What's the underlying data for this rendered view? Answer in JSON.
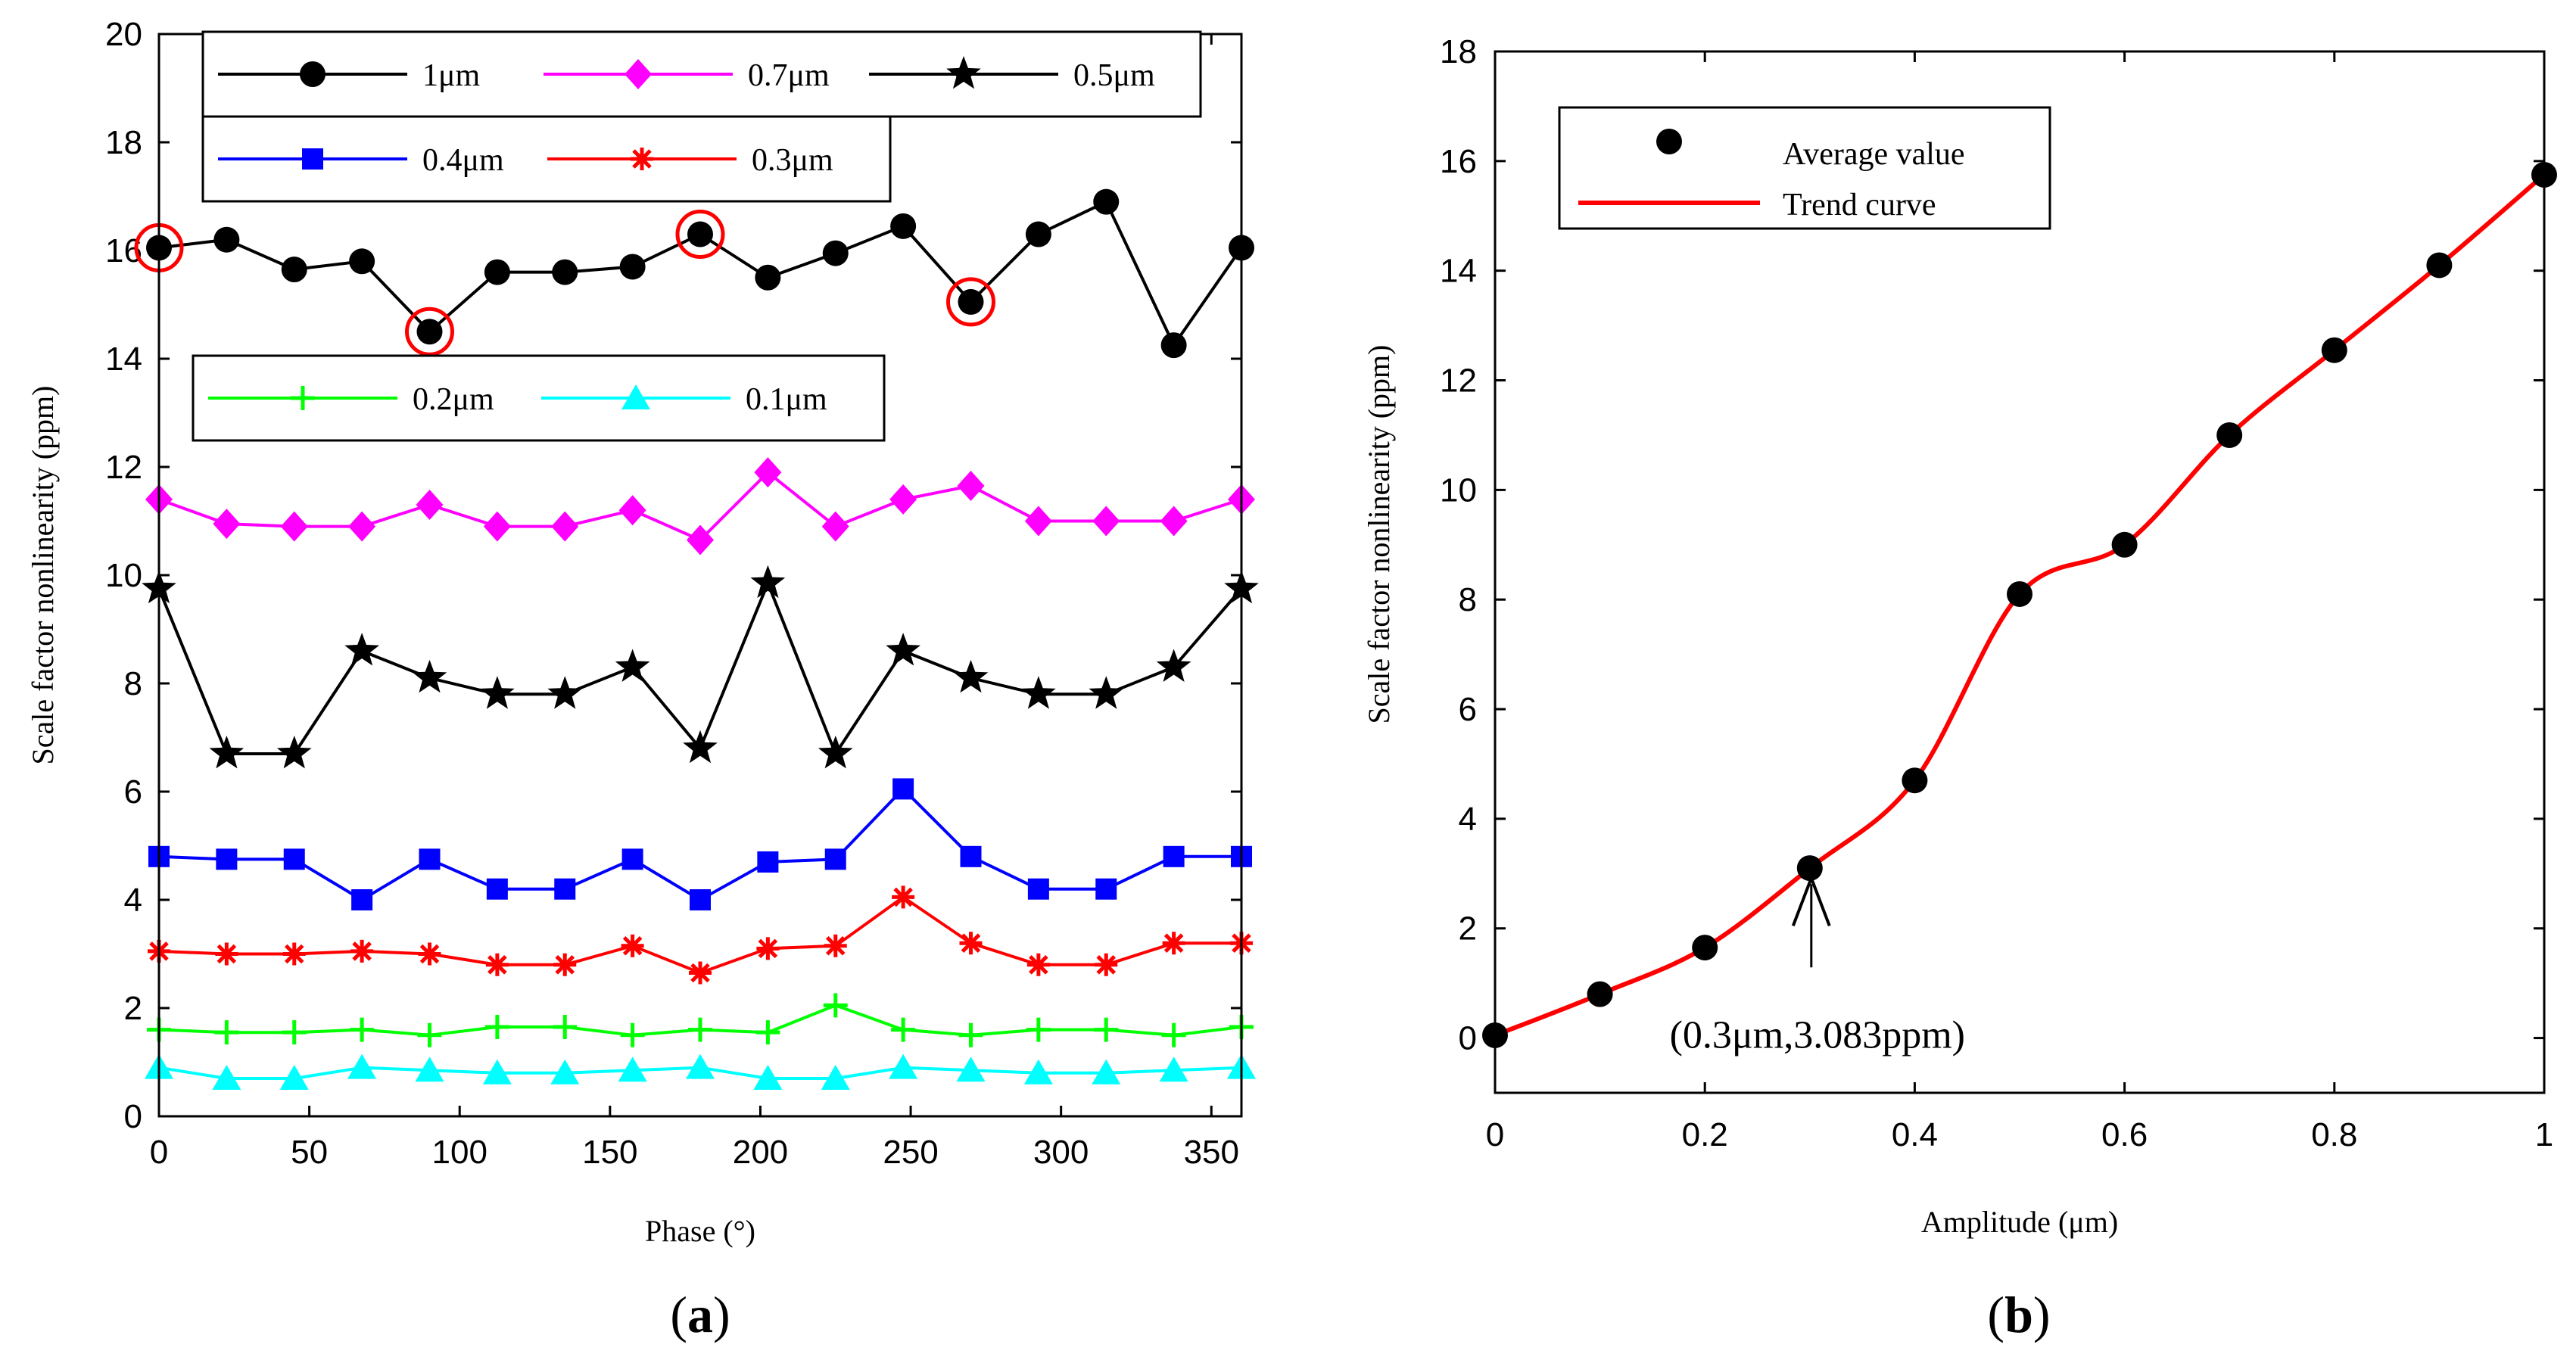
{
  "chart_data": [
    {
      "id": "a",
      "type": "line",
      "caption_open": "(",
      "caption_letter": "a",
      "caption_close": ")",
      "xlabel": "Phase (°)",
      "ylabel": "Scale factor nonlinearity (ppm)",
      "xlim": [
        0,
        360
      ],
      "ylim": [
        0,
        20
      ],
      "xticks": [
        0,
        50,
        100,
        150,
        200,
        250,
        300,
        350
      ],
      "yticks": [
        0,
        2,
        4,
        6,
        8,
        10,
        12,
        14,
        16,
        18,
        20
      ],
      "x": [
        0,
        22.5,
        45,
        67.5,
        90,
        112.5,
        135,
        157.5,
        180,
        202.5,
        225,
        247.5,
        270,
        292.5,
        315,
        337.5,
        360
      ],
      "series": [
        {
          "name": "1μm",
          "color": "#000000",
          "marker": "circle",
          "values": [
            16.05,
            16.2,
            15.65,
            15.8,
            14.5,
            15.6,
            15.6,
            15.7,
            16.3,
            15.5,
            15.95,
            16.45,
            15.05,
            16.3,
            16.9,
            14.25,
            16.05
          ]
        },
        {
          "name": "0.7μm",
          "color": "#ff00ff",
          "marker": "diamond",
          "values": [
            11.4,
            10.95,
            10.9,
            10.9,
            11.3,
            10.9,
            10.9,
            11.2,
            10.65,
            11.9,
            10.9,
            11.4,
            11.65,
            11.0,
            11.0,
            11.0,
            11.4
          ]
        },
        {
          "name": "0.5μm",
          "color": "#000000",
          "marker": "star",
          "values": [
            9.75,
            6.7,
            6.7,
            8.6,
            8.1,
            7.8,
            7.8,
            8.3,
            6.8,
            9.85,
            6.7,
            8.6,
            8.1,
            7.8,
            7.8,
            8.3,
            9.75
          ]
        },
        {
          "name": "0.4μm",
          "color": "#0000ff",
          "marker": "square",
          "values": [
            4.8,
            4.75,
            4.75,
            4.0,
            4.75,
            4.2,
            4.2,
            4.75,
            4.0,
            4.7,
            4.75,
            6.05,
            4.8,
            4.2,
            4.2,
            4.8,
            4.8
          ]
        },
        {
          "name": "0.3μm",
          "color": "#ff0000",
          "marker": "asterisk",
          "values": [
            3.05,
            3.0,
            3.0,
            3.05,
            3.0,
            2.8,
            2.8,
            3.15,
            2.65,
            3.1,
            3.15,
            4.05,
            3.2,
            2.8,
            2.8,
            3.2,
            3.2
          ]
        },
        {
          "name": "0.2μm",
          "color": "#00ff00",
          "marker": "plus",
          "values": [
            1.6,
            1.55,
            1.55,
            1.6,
            1.5,
            1.65,
            1.65,
            1.5,
            1.6,
            1.55,
            2.05,
            1.6,
            1.5,
            1.6,
            1.6,
            1.5,
            1.65
          ]
        },
        {
          "name": "0.1μm",
          "color": "#00ffff",
          "marker": "triangle",
          "values": [
            0.9,
            0.7,
            0.7,
            0.9,
            0.85,
            0.8,
            0.8,
            0.85,
            0.9,
            0.7,
            0.7,
            0.9,
            0.85,
            0.8,
            0.8,
            0.85,
            0.9
          ]
        }
      ],
      "highlighted_points": [
        {
          "series": "1μm",
          "x": 0,
          "y": 16.05
        },
        {
          "series": "1μm",
          "x": 90,
          "y": 14.5
        },
        {
          "series": "1μm",
          "x": 180,
          "y": 16.3
        },
        {
          "series": "1μm",
          "x": 270,
          "y": 15.05
        }
      ],
      "highlight_color": "#ff0000",
      "legend_boxes": [
        {
          "entries": [
            "1μm",
            "0.7μm",
            "0.5μm"
          ],
          "placement": "top"
        },
        {
          "entries": [
            "0.4μm",
            "0.3μm"
          ],
          "placement": "top-left"
        },
        {
          "entries": [
            "0.2μm",
            "0.1μm"
          ],
          "placement": "left"
        }
      ]
    },
    {
      "id": "b",
      "type": "line",
      "caption_open": "(",
      "caption_letter": "b",
      "caption_close": ")",
      "xlabel": "Amplitude (μm)",
      "ylabel": "Scale factor nonlinearity (ppm)",
      "xlim": [
        0,
        1
      ],
      "ylim": [
        -1,
        18
      ],
      "xticks": [
        0,
        0.2,
        0.4,
        0.6,
        0.8,
        1
      ],
      "xtick_labels": [
        "0",
        "0.2",
        "0.4",
        "0.6",
        "0.8",
        "1"
      ],
      "yticks": [
        0,
        2,
        4,
        6,
        8,
        10,
        12,
        14,
        16,
        18
      ],
      "series": [
        {
          "name": "Average value",
          "color": "#000000",
          "marker": "circle",
          "line": false,
          "x": [
            0,
            0.1,
            0.2,
            0.3,
            0.4,
            0.5,
            0.6,
            0.7,
            0.8,
            0.9,
            1.0
          ],
          "values": [
            0.05,
            0.8,
            1.65,
            3.1,
            4.7,
            8.1,
            9.0,
            11.0,
            12.55,
            14.1,
            15.75
          ]
        },
        {
          "name": "Trend curve",
          "color": "#ff0000",
          "marker": "none",
          "line": true,
          "x": [
            0,
            0.1,
            0.2,
            0.3,
            0.4,
            0.5,
            0.6,
            0.7,
            0.8,
            0.9,
            1.0
          ],
          "values": [
            0.05,
            0.8,
            1.65,
            3.1,
            4.7,
            8.1,
            9.0,
            11.0,
            12.55,
            14.1,
            15.75
          ]
        }
      ],
      "annotation": {
        "text": "(0.3μm,3.083ppm)",
        "x": 0.3,
        "y": 3.083
      },
      "legend": {
        "entries": [
          "Average value",
          "Trend curve"
        ],
        "placement": "top-left"
      }
    }
  ]
}
